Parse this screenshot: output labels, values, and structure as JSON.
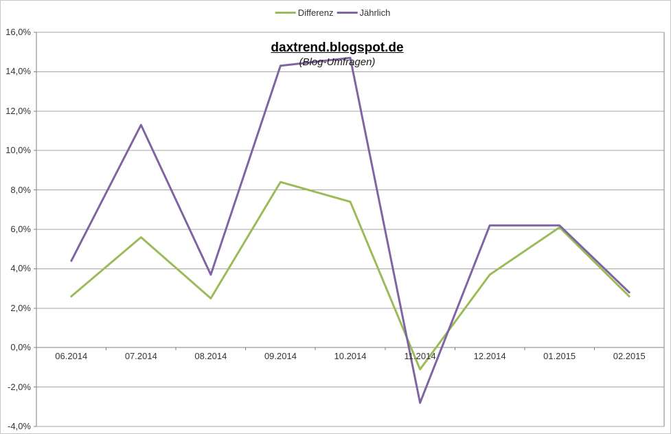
{
  "header": {
    "title": "daxtrend.blogspot.de",
    "subtitle": "(Blog-Umfragen)"
  },
  "chart_data": {
    "type": "line",
    "title": "daxtrend.blogspot.de",
    "subtitle": "(Blog-Umfragen)",
    "categories": [
      "06.2014",
      "07.2014",
      "08.2014",
      "09.2014",
      "10.2014",
      "11.2014",
      "12.2014",
      "01.2015",
      "02.2015"
    ],
    "series": [
      {
        "name": "Differenz",
        "color": "#9BBB59",
        "values": [
          2.6,
          5.6,
          2.5,
          8.4,
          7.4,
          -1.1,
          3.7,
          6.1,
          2.6
        ]
      },
      {
        "name": "Jährlich",
        "color": "#8064A2",
        "values": [
          4.4,
          11.3,
          3.7,
          14.3,
          14.7,
          -2.8,
          6.2,
          6.2,
          2.8
        ]
      }
    ],
    "xlabel": "",
    "ylabel": "",
    "ylim": [
      -4,
      16
    ],
    "ytick_step": 2,
    "ytick_labels": [
      "16,0%",
      "14,0%",
      "12,0%",
      "10,0%",
      "8,0%",
      "6,0%",
      "4,0%",
      "2,0%",
      "0,0%",
      "-2,0%",
      "-4,0%"
    ],
    "grid": true,
    "legend_position": "top",
    "colors": {
      "grid": "#a6a6a6",
      "axis": "#808080",
      "label": "#333333",
      "background": "#ffffff"
    }
  }
}
